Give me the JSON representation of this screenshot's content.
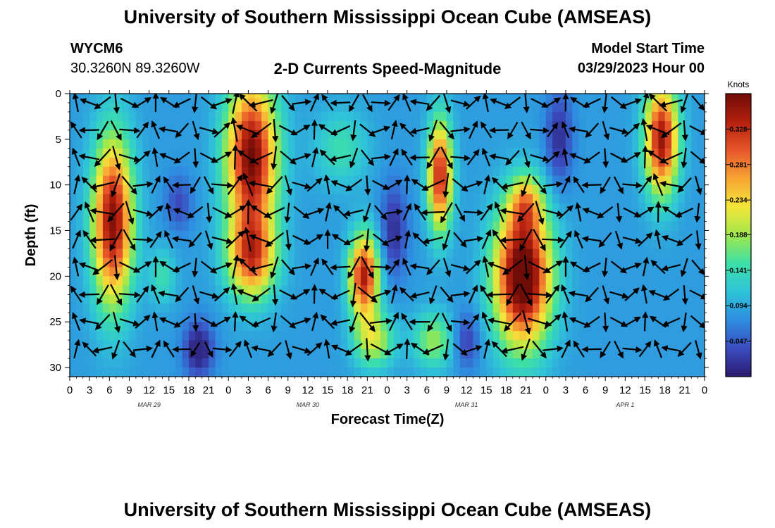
{
  "header": {
    "title": "University of Southern Mississippi Ocean Cube (AMSEAS)",
    "station_id": "WYCM6",
    "coords": "30.3260N  89.3260W",
    "plot_title": "2-D Currents Speed-Magnitude",
    "model_start_label": "Model Start Time",
    "model_start_value": "03/29/2023 Hour 00"
  },
  "footer": {
    "title": "University of Southern Mississippi Ocean Cube (AMSEAS)"
  },
  "chart_data": {
    "type": "heatmap",
    "xlabel": "Forecast Time(Z)",
    "ylabel": "Depth (ft)",
    "x_tick_labels": [
      "0",
      "3",
      "6",
      "9",
      "12",
      "15",
      "18",
      "21",
      "0",
      "3",
      "6",
      "9",
      "12",
      "15",
      "18",
      "21",
      "0",
      "3",
      "6",
      "9",
      "12",
      "15",
      "18",
      "21",
      "0",
      "3",
      "6",
      "9",
      "12",
      "15",
      "18",
      "21",
      "0"
    ],
    "x_range_hours": [
      0,
      96
    ],
    "date_labels": [
      {
        "label": "MAR 29",
        "hour": 12
      },
      {
        "label": "MAR 30",
        "hour": 36
      },
      {
        "label": "MAR 31",
        "hour": 60
      },
      {
        "label": "APR 1",
        "hour": 84
      }
    ],
    "y_ticks": [
      0,
      5,
      10,
      15,
      20,
      25,
      30
    ],
    "y_range": [
      0,
      31
    ],
    "y_inverted": true,
    "colorbar": {
      "unit": "Knots",
      "ticks": [
        "0.328",
        "0.281",
        "0.234",
        "0.188",
        "0.141",
        "0.094",
        "0.047"
      ],
      "range": [
        0,
        0.375
      ],
      "colormap": [
        "#2b1a6e",
        "#3b4cc0",
        "#2e8ee0",
        "#2fc4d8",
        "#3de0a8",
        "#9fe84a",
        "#f5e63a",
        "#f8a534",
        "#e8562a",
        "#b5200f",
        "#6e0c08"
      ]
    },
    "grid_hours": [
      0,
      2,
      4,
      6,
      8,
      10,
      12,
      14,
      16,
      18,
      20,
      22,
      24,
      26,
      28,
      30,
      32,
      34,
      36,
      38,
      40,
      42,
      44,
      46,
      48,
      50,
      52,
      54,
      56,
      58,
      60,
      62,
      64,
      66,
      68,
      70,
      72,
      74,
      76,
      78,
      80,
      82,
      84,
      86,
      88,
      90,
      92,
      94,
      96
    ],
    "grid_depths": [
      0,
      2,
      4,
      6,
      8,
      10,
      12,
      14,
      16,
      18,
      20,
      22,
      24,
      26,
      28,
      30
    ],
    "speed_blobs": [
      {
        "t": 6.5,
        "d": 14,
        "st": 3,
        "sd": 9,
        "a": 0.28
      },
      {
        "t": 27.5,
        "d": 7,
        "st": 3.8,
        "sd": 8.5,
        "a": 0.29
      },
      {
        "t": 27.5,
        "d": 18,
        "st": 3.6,
        "sd": 4.5,
        "a": 0.2
      },
      {
        "t": 44.5,
        "d": 20,
        "st": 2.2,
        "sd": 4.5,
        "a": 0.26
      },
      {
        "t": 56,
        "d": 9,
        "st": 1.8,
        "sd": 6,
        "a": 0.25
      },
      {
        "t": 68.5,
        "d": 20,
        "st": 4.2,
        "sd": 7.5,
        "a": 0.33
      },
      {
        "t": 69,
        "d": 12,
        "st": 2.5,
        "sd": 3,
        "a": 0.12
      },
      {
        "t": 89.5,
        "d": 5,
        "st": 2.5,
        "sd": 6,
        "a": 0.27
      },
      {
        "t": 46,
        "d": 27,
        "st": 3,
        "sd": 3,
        "a": 0.12
      },
      {
        "t": 55,
        "d": 27,
        "st": 3,
        "sd": 3,
        "a": 0.1
      },
      {
        "t": 14,
        "d": 20,
        "st": 2,
        "sd": 3,
        "a": 0.06
      },
      {
        "t": 41,
        "d": 6,
        "st": 4,
        "sd": 4,
        "a": 0.06
      }
    ],
    "calm_blobs": [
      {
        "t": 19.5,
        "d": 28,
        "st": 2.2,
        "sd": 3,
        "a": 0.09
      },
      {
        "t": 49,
        "d": 15,
        "st": 2,
        "sd": 5,
        "a": 0.07
      },
      {
        "t": 74,
        "d": 5,
        "st": 2,
        "sd": 5,
        "a": 0.07
      },
      {
        "t": 16.5,
        "d": 12,
        "st": 2,
        "sd": 3,
        "a": 0.05
      },
      {
        "t": 60,
        "d": 27,
        "st": 2,
        "sd": 3,
        "a": 0.06
      }
    ],
    "base_speed": 0.085,
    "arrows": {
      "grid_hours": [
        1,
        3,
        5,
        7,
        9,
        11,
        13,
        15,
        17,
        19,
        21,
        23,
        25,
        27,
        29,
        31,
        33,
        35,
        37,
        39,
        41,
        43,
        45,
        47,
        49,
        51,
        53,
        55,
        57,
        59,
        61,
        63,
        65,
        67,
        69,
        71,
        73,
        75,
        77,
        79,
        81,
        83,
        85,
        87,
        89,
        91,
        93,
        95
      ],
      "grid_depths": [
        1,
        4,
        7,
        10,
        13,
        16,
        19,
        22,
        25,
        28
      ],
      "phase_period_hours": 12.4,
      "phase_offset_deg": 60
    }
  }
}
